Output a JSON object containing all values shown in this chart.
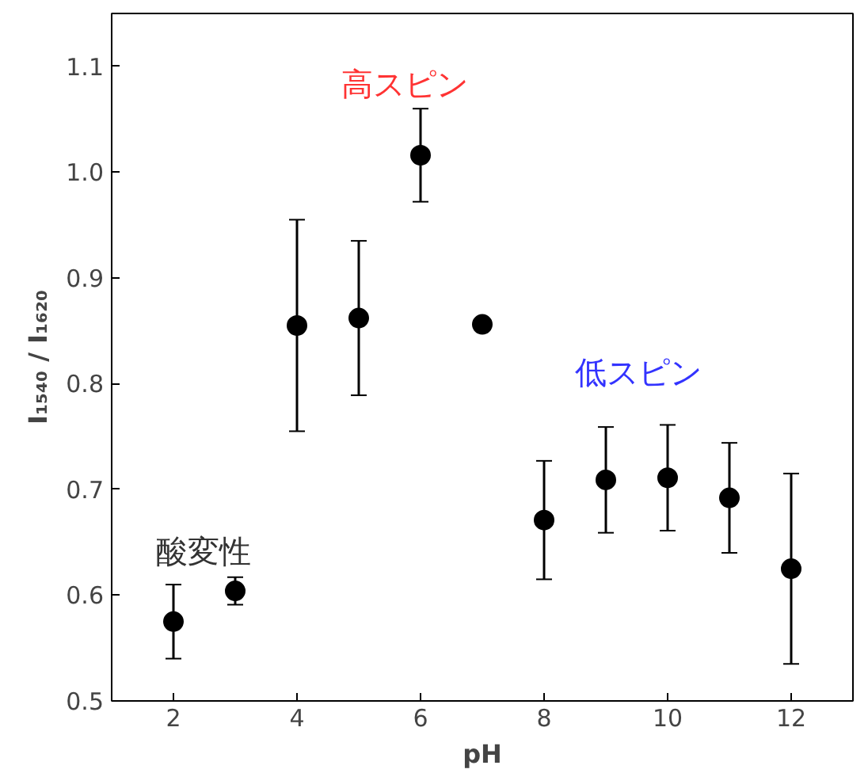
{
  "chart_data": {
    "type": "scatter",
    "xlabel": "pH",
    "ylabel": "I₁₅₄₀ / I₁₆₂₀",
    "x": [
      2,
      3,
      4,
      5,
      6,
      7,
      8,
      9,
      10,
      11,
      12
    ],
    "series": [
      {
        "color": "#000000",
        "values": [
          0.575,
          0.604,
          0.855,
          0.862,
          1.016,
          0.856,
          0.671,
          0.709,
          0.711,
          0.692,
          0.625
        ],
        "errors": [
          0.035,
          0.013,
          0.1,
          0.073,
          0.044,
          null,
          0.056,
          0.05,
          0.05,
          0.052,
          0.09
        ]
      }
    ],
    "xlim": [
      1,
      13
    ],
    "ylim": [
      0.5,
      1.15
    ],
    "xticks": [
      2,
      4,
      6,
      8,
      10,
      12
    ],
    "yticks": [
      0.5,
      0.6,
      0.7,
      0.8,
      0.9,
      {
        "value": 1,
        "label": "1.0"
      },
      1.1
    ],
    "marker": "circle",
    "grid": false,
    "annotations": [
      "高スピン",
      "低スピン",
      "酸変性"
    ]
  }
}
